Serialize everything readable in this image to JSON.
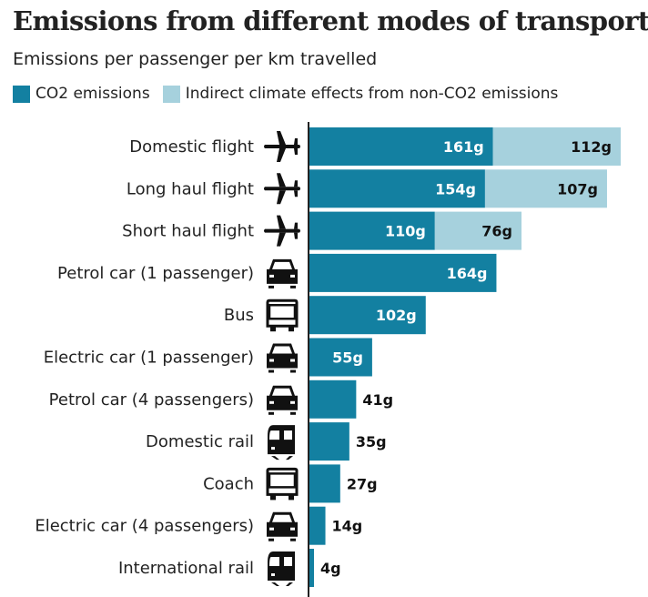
{
  "chart_data": {
    "type": "bar",
    "orientation": "horizontal",
    "stacked": true,
    "title": "Emissions from different modes of transport",
    "subtitle": "Emissions per passenger per km travelled",
    "unit_suffix": "g",
    "categories": [
      "Domestic flight",
      "Long haul flight",
      "Short haul flight",
      "Petrol car (1 passenger)",
      "Bus",
      "Electric car (1 passenger)",
      "Petrol car (4 passengers)",
      "Domestic rail",
      "Coach",
      "Electric car (4 passengers)",
      "International rail"
    ],
    "icons": [
      "plane-icon",
      "plane-icon",
      "plane-icon",
      "car-icon",
      "bus-icon",
      "car-icon",
      "car-icon",
      "train-icon",
      "bus-icon",
      "car-icon",
      "train-icon"
    ],
    "series": [
      {
        "name": "CO2 emissions",
        "color": "#1380a1",
        "values": [
          161,
          154,
          110,
          164,
          102,
          55,
          41,
          35,
          27,
          14,
          4
        ]
      },
      {
        "name": "Indirect climate effects from non-CO2 emissions",
        "color": "#a6d1dd",
        "values": [
          112,
          107,
          76,
          null,
          null,
          null,
          null,
          null,
          null,
          null,
          null
        ]
      }
    ],
    "xlim": [
      0,
      275
    ],
    "grid": false,
    "legend_position": "top-left"
  }
}
